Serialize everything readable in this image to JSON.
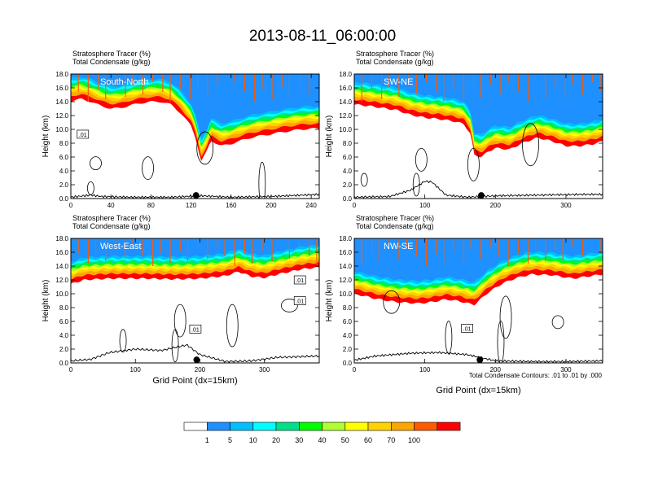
{
  "title": "2013-08-11_06:00:00",
  "contour_note": "Total Condensate Contours: .01 to .01 by .000",
  "colorbar": {
    "colors": [
      "#ffffff",
      "#1e90ff",
      "#00bfff",
      "#00ffff",
      "#00e08a",
      "#00ff00",
      "#adff2f",
      "#ffff00",
      "#ffd200",
      "#ffa500",
      "#ff5a00",
      "#ff0000"
    ],
    "labels": [
      "1",
      "5",
      "10",
      "20",
      "30",
      "40",
      "50",
      "60",
      "70",
      "100"
    ]
  },
  "chart_data": [
    {
      "type": "heatmap",
      "panel": "top-left",
      "label": "South-North",
      "subtitle_lines": [
        "Stratosphere Tracer   (%)",
        "Total Condensate   (g/kg)"
      ],
      "ylabel": "Height (km)",
      "xlabel": "",
      "xlim": [
        0,
        248
      ],
      "ylim": [
        0,
        18
      ],
      "xticks": [
        "0",
        "40",
        "80",
        "120",
        "160",
        "200",
        "240"
      ],
      "xtick_values": [
        0,
        40,
        80,
        120,
        160,
        200,
        240
      ],
      "yticks": [
        "0.0",
        "2.0",
        "4.0",
        "6.0",
        "8.0",
        "10.0",
        "12.0",
        "14.0",
        "16.0",
        "18.0"
      ],
      "contour_labels": [
        ".01"
      ],
      "contour_label_pos": [
        [
          12,
          9.3
        ]
      ],
      "tracer_base_km": [
        [
          0,
          14.1
        ],
        [
          10,
          14.4
        ],
        [
          20,
          14.0
        ],
        [
          30,
          13.4
        ],
        [
          40,
          13.0
        ],
        [
          50,
          13.1
        ],
        [
          60,
          13.5
        ],
        [
          70,
          13.8
        ],
        [
          80,
          14.0
        ],
        [
          90,
          14.0
        ],
        [
          100,
          13.6
        ],
        [
          110,
          12.3
        ],
        [
          120,
          10.5
        ],
        [
          125,
          8.6
        ],
        [
          130,
          5.4
        ],
        [
          135,
          6.6
        ],
        [
          140,
          8.4
        ],
        [
          145,
          8.0
        ],
        [
          150,
          7.6
        ],
        [
          160,
          7.9
        ],
        [
          170,
          8.4
        ],
        [
          180,
          8.8
        ],
        [
          190,
          9.1
        ],
        [
          200,
          9.3
        ],
        [
          210,
          9.6
        ],
        [
          220,
          9.8
        ],
        [
          230,
          10.0
        ],
        [
          240,
          10.1
        ],
        [
          248,
          10.1
        ]
      ],
      "terrain_km": [
        [
          0,
          0.2
        ],
        [
          20,
          0.5
        ],
        [
          30,
          0.3
        ],
        [
          60,
          0.2
        ],
        [
          100,
          0.2
        ],
        [
          130,
          0.4
        ],
        [
          160,
          0.2
        ],
        [
          200,
          0.3
        ],
        [
          248,
          0.6
        ]
      ],
      "marker_x": 125
    },
    {
      "type": "heatmap",
      "panel": "top-right",
      "label": "SW-NE",
      "subtitle_lines": [
        "Stratosphere Tracer   (%)",
        "Total Condensate   (g/kg)"
      ],
      "ylabel": "Height (km)",
      "xlabel": "",
      "xlim": [
        0,
        352
      ],
      "ylim": [
        0,
        18
      ],
      "xticks": [
        "0",
        "100",
        "200",
        "300"
      ],
      "xtick_values": [
        0,
        100,
        200,
        300
      ],
      "yticks": [
        "0.0",
        "2.0",
        "4.0",
        "6.0",
        "8.0",
        "10.0",
        "12.0",
        "14.0",
        "16.0",
        "18.0"
      ],
      "contour_labels": [],
      "contour_label_pos": [],
      "tracer_base_km": [
        [
          0,
          13.6
        ],
        [
          20,
          13.4
        ],
        [
          40,
          13.1
        ],
        [
          60,
          12.8
        ],
        [
          80,
          12.1
        ],
        [
          100,
          11.7
        ],
        [
          120,
          11.5
        ],
        [
          140,
          11.2
        ],
        [
          155,
          10.8
        ],
        [
          165,
          9.3
        ],
        [
          170,
          6.3
        ],
        [
          180,
          6.0
        ],
        [
          190,
          6.8
        ],
        [
          200,
          7.3
        ],
        [
          220,
          7.1
        ],
        [
          240,
          8.1
        ],
        [
          260,
          8.8
        ],
        [
          280,
          8.3
        ],
        [
          300,
          7.6
        ],
        [
          320,
          7.6
        ],
        [
          340,
          7.9
        ],
        [
          352,
          8.3
        ]
      ],
      "terrain_km": [
        [
          0,
          0.2
        ],
        [
          50,
          0.3
        ],
        [
          80,
          1.2
        ],
        [
          100,
          2.5
        ],
        [
          110,
          2.4
        ],
        [
          130,
          0.5
        ],
        [
          160,
          0.2
        ],
        [
          200,
          0.4
        ],
        [
          260,
          0.5
        ],
        [
          320,
          0.6
        ],
        [
          352,
          0.6
        ]
      ],
      "marker_x": 180
    },
    {
      "type": "heatmap",
      "panel": "bottom-left",
      "label": "West-East",
      "subtitle_lines": [
        "Stratosphere Tracer   (%)",
        "Total Condensate   (g/kg)"
      ],
      "ylabel": "Height (km)",
      "xlabel": "Grid Point (dx=15km)",
      "xlim": [
        0,
        385
      ],
      "ylim": [
        0,
        18
      ],
      "xticks": [
        "0",
        "100",
        "200",
        "300"
      ],
      "xtick_values": [
        0,
        100,
        200,
        300
      ],
      "yticks": [
        "0.0",
        "2.0",
        "4.0",
        "6.0",
        "8.0",
        "10.0",
        "12.0",
        "14.0",
        "16.0",
        "18.0"
      ],
      "contour_labels": [
        ".01",
        ".01",
        ".01"
      ],
      "contour_label_pos": [
        [
          193,
          4.9
        ],
        [
          355,
          12.0
        ],
        [
          355,
          9.0
        ]
      ],
      "tracer_base_km": [
        [
          0,
          11.4
        ],
        [
          20,
          12.0
        ],
        [
          60,
          12.2
        ],
        [
          120,
          12.2
        ],
        [
          160,
          12.1
        ],
        [
          200,
          12.2
        ],
        [
          240,
          12.6
        ],
        [
          260,
          13.2
        ],
        [
          280,
          12.5
        ],
        [
          300,
          12.3
        ],
        [
          320,
          12.8
        ],
        [
          340,
          13.2
        ],
        [
          360,
          13.6
        ],
        [
          385,
          13.8
        ]
      ],
      "terrain_km": [
        [
          0,
          0.3
        ],
        [
          30,
          0.5
        ],
        [
          60,
          1.5
        ],
        [
          100,
          2.0
        ],
        [
          140,
          1.8
        ],
        [
          180,
          2.6
        ],
        [
          200,
          1.2
        ],
        [
          240,
          0.2
        ],
        [
          280,
          0.3
        ],
        [
          320,
          0.8
        ],
        [
          385,
          1.0
        ]
      ],
      "marker_x": 195
    },
    {
      "type": "heatmap",
      "panel": "bottom-right",
      "label": "NW-SE",
      "subtitle_lines": [
        "Stratosphere Tracer   (%)",
        "Total Condensate   (g/kg)"
      ],
      "ylabel": "Height (km)",
      "xlabel": "Grid Point (dx=15km)",
      "xlim": [
        0,
        352
      ],
      "ylim": [
        0,
        18
      ],
      "xticks": [
        "0",
        "100",
        "200",
        "300"
      ],
      "xtick_values": [
        0,
        100,
        200,
        300
      ],
      "yticks": [
        "0.0",
        "2.0",
        "4.0",
        "6.0",
        "8.0",
        "10.0",
        "12.0",
        "14.0",
        "16.0",
        "18.0"
      ],
      "contour_labels": [
        ".01"
      ],
      "contour_label_pos": [
        [
          160,
          5.0
        ]
      ],
      "tracer_base_km": [
        [
          0,
          10.0
        ],
        [
          30,
          9.3
        ],
        [
          60,
          8.8
        ],
        [
          90,
          8.6
        ],
        [
          110,
          8.8
        ],
        [
          130,
          9.2
        ],
        [
          150,
          8.9
        ],
        [
          170,
          8.4
        ],
        [
          190,
          10.2
        ],
        [
          210,
          11.5
        ],
        [
          230,
          12.3
        ],
        [
          250,
          12.8
        ],
        [
          280,
          12.7
        ],
        [
          310,
          12.2
        ],
        [
          330,
          12.5
        ],
        [
          352,
          12.8
        ]
      ],
      "terrain_km": [
        [
          0,
          0.4
        ],
        [
          30,
          1.0
        ],
        [
          80,
          1.4
        ],
        [
          120,
          1.5
        ],
        [
          160,
          1.2
        ],
        [
          200,
          0.3
        ],
        [
          260,
          0.2
        ],
        [
          300,
          0.2
        ],
        [
          352,
          0.3
        ]
      ],
      "marker_x": 178
    }
  ]
}
